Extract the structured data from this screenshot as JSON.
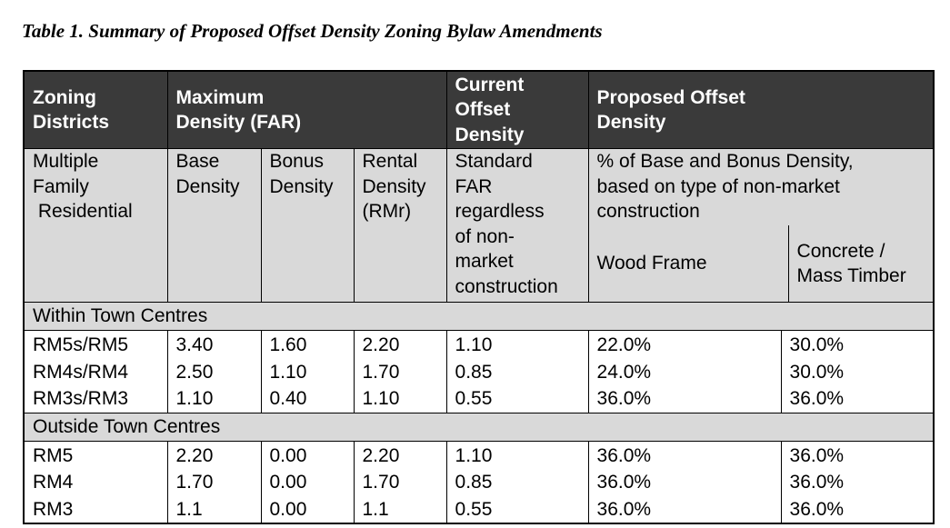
{
  "caption": "Table 1. Summary of Proposed Offset Density Zoning Bylaw Amendments",
  "header": {
    "zoning": [
      "Zoning",
      "Districts"
    ],
    "max_density": [
      "Maximum",
      "Density (FAR)"
    ],
    "current": [
      "Current",
      "Offset",
      "Density"
    ],
    "proposed": [
      "Proposed Offset",
      "Density"
    ]
  },
  "subheader": {
    "zoning": [
      "Multiple",
      "Family",
      " Residential"
    ],
    "base": [
      "Base",
      "Density"
    ],
    "bonus": [
      "Bonus",
      "Density"
    ],
    "rental": [
      "Rental",
      "Density",
      "(RMr)"
    ],
    "standard": [
      "Standard",
      "FAR",
      "regardless",
      "of non-",
      "market",
      "construction"
    ],
    "pct": [
      "% of Base and Bonus Density,",
      "based on type of non-market",
      "construction"
    ],
    "wood": "Wood Frame",
    "concrete": [
      "Concrete /",
      "Mass Timber"
    ]
  },
  "sections": [
    {
      "label": "Within Town Centres",
      "rows": [
        {
          "zone": "RM5s/RM5",
          "base": "3.40",
          "bonus": "1.60",
          "rental": "2.20",
          "current": "1.10",
          "wood": "22.0%",
          "concrete": "30.0%"
        },
        {
          "zone": "RM4s/RM4",
          "base": "2.50",
          "bonus": "1.10",
          "rental": "1.70",
          "current": "0.85",
          "wood": "24.0%",
          "concrete": "30.0%"
        },
        {
          "zone": "RM3s/RM3",
          "base": "1.10",
          "bonus": "0.40",
          "rental": "1.10",
          "current": "0.55",
          "wood": "36.0%",
          "concrete": "36.0%"
        }
      ]
    },
    {
      "label": "Outside Town Centres",
      "rows": [
        {
          "zone": "RM5",
          "base": "2.20",
          "bonus": "0.00",
          "rental": "2.20",
          "current": "1.10",
          "wood": "36.0%",
          "concrete": "36.0%"
        },
        {
          "zone": "RM4",
          "base": "1.70",
          "bonus": "0.00",
          "rental": "1.70",
          "current": "0.85",
          "wood": "36.0%",
          "concrete": "36.0%"
        },
        {
          "zone": "RM3",
          "base": "1.1",
          "bonus": "0.00",
          "rental": "1.1",
          "current": "0.55",
          "wood": "36.0%",
          "concrete": "36.0%"
        }
      ]
    }
  ],
  "colors": {
    "header_bg": "#3a3a3a",
    "header_text": "#ffffff",
    "band_bg": "#d9d9d9"
  }
}
